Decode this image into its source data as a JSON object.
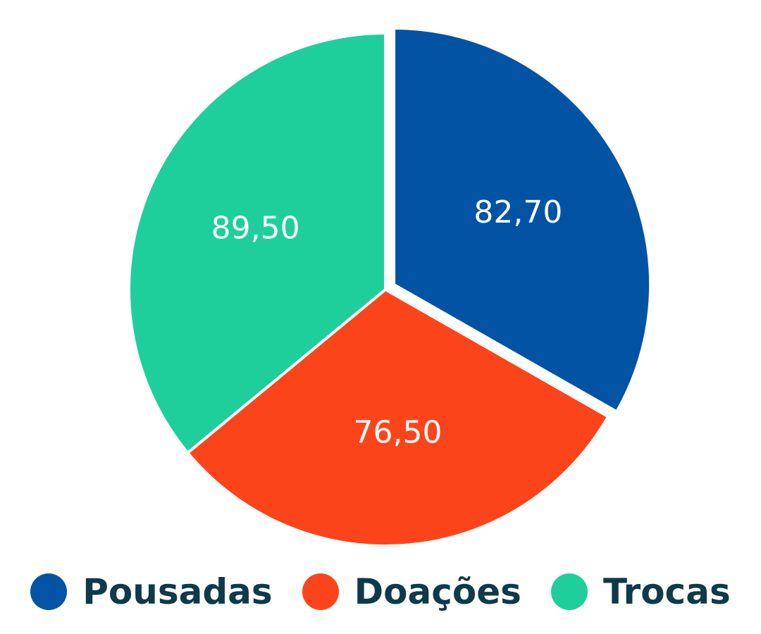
{
  "chart_data": {
    "type": "pie",
    "categories": [
      "Pousadas",
      "Doações",
      "Trocas"
    ],
    "values": [
      82.7,
      76.5,
      89.5
    ],
    "data_labels": [
      "82,70",
      "76,50",
      "89,50"
    ],
    "colors": [
      "#0253a3",
      "#fc441b",
      "#1ecf9b"
    ],
    "exploded": [
      "Pousadas"
    ],
    "legend_position": "bottom"
  },
  "legend": {
    "items": [
      {
        "label": "Pousadas",
        "color": "#0253a3"
      },
      {
        "label": "Doações",
        "color": "#fc441b"
      },
      {
        "label": "Trocas",
        "color": "#1ecf9b"
      }
    ]
  }
}
